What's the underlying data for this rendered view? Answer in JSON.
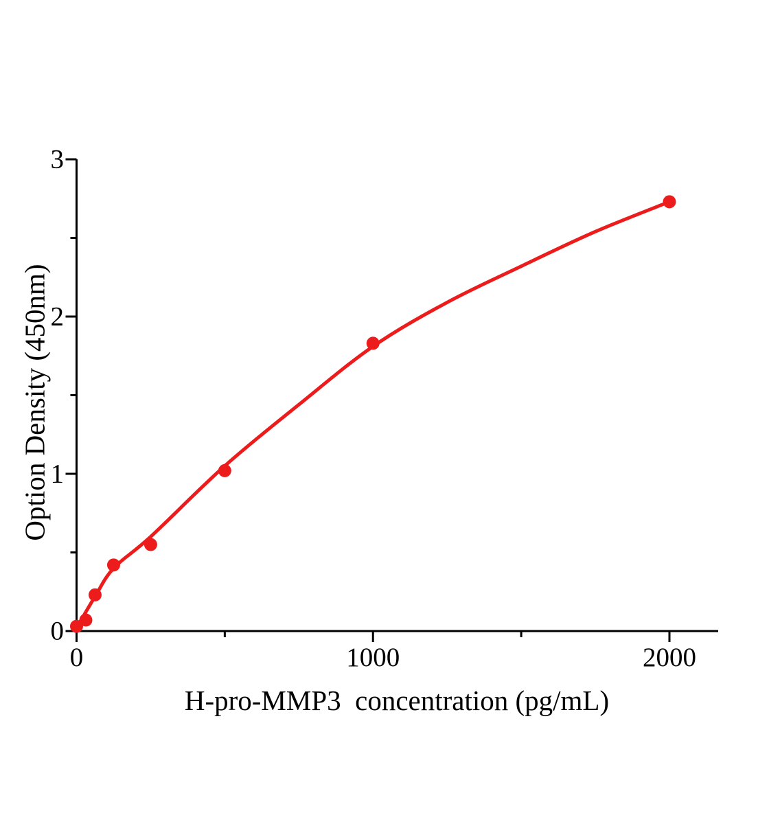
{
  "page": {
    "background": "#ffffff"
  },
  "chart_data": {
    "type": "scatter",
    "title": "",
    "xlabel": "H-pro-MMP3  concentration (pg/mL)",
    "ylabel": "Option Density (450nm)",
    "xlim": [
      0,
      2165
    ],
    "ylim": [
      0,
      3
    ],
    "grid": false,
    "legend": false,
    "axis_color": "#000000",
    "x_ticks": {
      "major": [
        {
          "value": 0,
          "label": "0"
        },
        {
          "value": 1000,
          "label": "1000"
        },
        {
          "value": 2000,
          "label": "2000"
        }
      ],
      "minor": [
        500,
        1500
      ]
    },
    "y_ticks": {
      "major": [
        {
          "value": 0,
          "label": "0"
        },
        {
          "value": 1,
          "label": "1"
        },
        {
          "value": 2,
          "label": "2"
        },
        {
          "value": 3,
          "label": "3"
        }
      ],
      "minor": [
        0.5,
        1.5,
        2.5
      ]
    },
    "series": [
      {
        "name": "standard-curve-points",
        "marker": "filled-circle",
        "color": "#ec1c1c",
        "points": [
          [
            0,
            0.03
          ],
          [
            31.25,
            0.07
          ],
          [
            62.5,
            0.23
          ],
          [
            125,
            0.42
          ],
          [
            250,
            0.55
          ],
          [
            500,
            1.02
          ],
          [
            1000,
            1.83
          ],
          [
            2000,
            2.73
          ]
        ]
      }
    ],
    "fit_curve": {
      "name": "fitted-curve",
      "color": "#ec1c1c",
      "samples": [
        [
          0,
          0.02
        ],
        [
          62.5,
          0.22
        ],
        [
          125,
          0.4
        ],
        [
          250,
          0.6
        ],
        [
          500,
          1.05
        ],
        [
          750,
          1.44
        ],
        [
          1000,
          1.81
        ],
        [
          1250,
          2.09
        ],
        [
          1500,
          2.32
        ],
        [
          1750,
          2.54
        ],
        [
          2000,
          2.73
        ]
      ]
    }
  }
}
